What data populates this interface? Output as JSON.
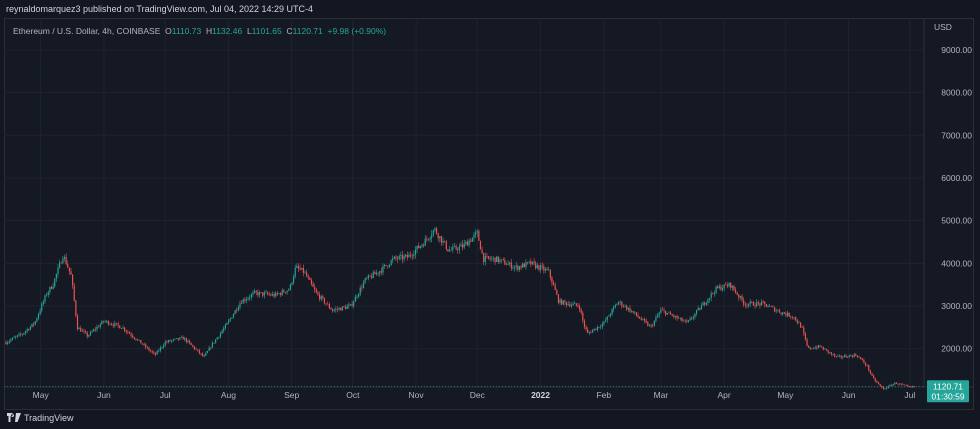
{
  "header": {
    "published_by": "reynaldomarquez3 published on TradingView.com, Jul 04, 2022 14:29 UTC-4"
  },
  "legend": {
    "symbol": "Ethereum / U.S. Dollar, 4h, COINBASE",
    "o_label": "O",
    "o_value": "1110.73",
    "h_label": "H",
    "h_value": "1132.46",
    "l_label": "L",
    "l_value": "1101.65",
    "c_label": "C",
    "c_value": "1120.71",
    "change": "+9.98 (+0.90%)"
  },
  "price_badge": {
    "price": "1120.71",
    "countdown": "01:30:59"
  },
  "footer": {
    "brand": "TradingView"
  },
  "colors": {
    "up": "#26a69a",
    "down": "#ef5350",
    "background": "#131722",
    "grid": "#1f2330"
  },
  "chart_data": {
    "type": "candlestick",
    "title": "Ethereum / U.S. Dollar, 4h, COINBASE",
    "currency_label": "USD",
    "y_ticks": [
      2000,
      3000,
      4000,
      5000,
      6000,
      7000,
      8000,
      9000
    ],
    "y_tick_labels": [
      "2000.00",
      "3000.00",
      "4000.00",
      "5000.00",
      "6000.00",
      "7000.00",
      "8000.00",
      "9000.00"
    ],
    "ylim": [
      1150,
      9700
    ],
    "x_ticks": [
      "May",
      "Jun",
      "Jul",
      "Aug",
      "Sep",
      "Oct",
      "Nov",
      "Dec",
      "2022",
      "Feb",
      "Mar",
      "Apr",
      "May",
      "Jun",
      "Jul"
    ],
    "grid": true,
    "price_path": {
      "x": [
        "2021-04-14",
        "2021-04-22",
        "2021-04-28",
        "2021-05-04",
        "2021-05-07",
        "2021-05-12",
        "2021-05-16",
        "2021-05-19",
        "2021-05-24",
        "2021-06-01",
        "2021-06-10",
        "2021-06-20",
        "2021-06-26",
        "2021-07-01",
        "2021-07-10",
        "2021-07-20",
        "2021-07-24",
        "2021-07-31",
        "2021-08-07",
        "2021-08-14",
        "2021-08-24",
        "2021-08-31",
        "2021-09-03",
        "2021-09-07",
        "2021-09-13",
        "2021-09-21",
        "2021-09-30",
        "2021-10-07",
        "2021-10-15",
        "2021-10-21",
        "2021-10-28",
        "2021-11-05",
        "2021-11-10",
        "2021-11-17",
        "2021-11-24",
        "2021-12-01",
        "2021-12-04",
        "2021-12-10",
        "2021-12-20",
        "2021-12-27",
        "2022-01-05",
        "2022-01-10",
        "2022-01-20",
        "2022-01-22",
        "2022-01-24",
        "2022-02-01",
        "2022-02-08",
        "2022-02-14",
        "2022-02-24",
        "2022-03-01",
        "2022-03-14",
        "2022-03-28",
        "2022-04-04",
        "2022-04-11",
        "2022-04-20",
        "2022-04-29",
        "2022-05-05",
        "2022-05-09",
        "2022-05-12",
        "2022-05-18",
        "2022-05-26",
        "2022-06-05",
        "2022-06-10",
        "2022-06-13",
        "2022-06-18",
        "2022-06-24",
        "2022-07-01",
        "2022-07-04"
      ],
      "y": [
        2150,
        2350,
        2600,
        3300,
        3500,
        4200,
        3700,
        2500,
        2300,
        2650,
        2500,
        2100,
        1850,
        2150,
        2250,
        1800,
        2100,
        2550,
        3100,
        3300,
        3250,
        3400,
        3900,
        3800,
        3300,
        2900,
        3000,
        3600,
        3850,
        4100,
        4150,
        4500,
        4800,
        4300,
        4400,
        4700,
        4100,
        4100,
        3900,
        4000,
        3800,
        3100,
        3000,
        2600,
        2350,
        2600,
        3100,
        2900,
        2500,
        2900,
        2600,
        3400,
        3500,
        3050,
        3050,
        2850,
        2750,
        2500,
        2000,
        2050,
        1800,
        1850,
        1600,
        1300,
        1050,
        1200,
        1090,
        1120
      ]
    },
    "last_price": 1120.71
  }
}
